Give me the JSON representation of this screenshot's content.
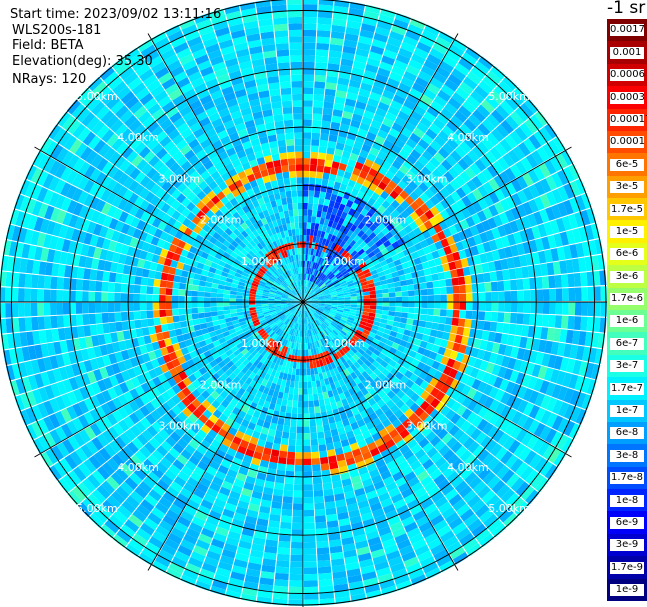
{
  "info": {
    "start_time": "Start time: 2023/09/02 13:11:16",
    "site": "WLS200s-181",
    "field": "Field: BETA",
    "elevation": "Elevation(deg): 35.30",
    "nrays": "NRays: 120"
  },
  "colorbar": {
    "units": "-1 sr",
    "labels": [
      "0.0017",
      "0.001",
      "0.0006",
      "0.0003",
      "0.00017",
      "0.0001",
      "6e-5",
      "3e-5",
      "1.7e-5",
      "1e-5",
      "6e-6",
      "3e-6",
      "1.7e-6",
      "1e-6",
      "6e-7",
      "3e-7",
      "1.7e-7",
      "1e-7",
      "6e-8",
      "3e-8",
      "1.7e-8",
      "1e-8",
      "6e-9",
      "3e-9",
      "1.7e-9",
      "1e-9"
    ]
  },
  "chart_data": {
    "type": "heatmap",
    "projection": "polar PPI",
    "field": "BETA",
    "range_rings_km": [
      1,
      2,
      3,
      4,
      5
    ],
    "ring_labels": [
      "1.00km",
      "2.00km",
      "3.00km",
      "4.00km",
      "5.00km"
    ],
    "azimuth_spokes_deg": [
      0,
      30,
      60,
      90,
      120,
      150,
      180,
      210,
      240,
      270,
      300,
      330
    ],
    "n_rays": 120,
    "max_range_km": 5.2,
    "colormap": "jet",
    "color_scale": "log",
    "value_range": [
      1e-09,
      0.0017
    ],
    "features": [
      {
        "feature": "background",
        "beta_range": [
          6e-08,
          1.7e-07
        ]
      },
      {
        "feature": "inner aerosol ring",
        "range_km": 1.0,
        "beta_range": [
          6e-05,
          0.0003
        ]
      },
      {
        "feature": "outer aerosol ring",
        "range_km": [
          2.4,
          2.8
        ],
        "beta_range": [
          1.7e-05,
          0.0003
        ]
      },
      {
        "feature": "low-signal sector northeast",
        "range_km": [
          0.3,
          2.0
        ],
        "beta_range": [
          1e-08,
          3e-08
        ]
      }
    ]
  }
}
